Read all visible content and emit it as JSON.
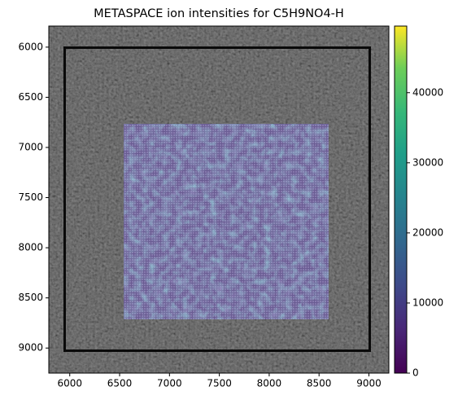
{
  "chart_data": {
    "type": "image",
    "title": "METASPACE ion intensities for C5H9NO4-H",
    "xlim": [
      5790,
      9200
    ],
    "xticks": [
      6000,
      6500,
      7000,
      7500,
      8000,
      8500,
      9000
    ],
    "ylim": [
      9250,
      5790
    ],
    "yticks": [
      6000,
      6500,
      7000,
      7500,
      8000,
      8500,
      9000
    ],
    "clim": [
      0,
      49500
    ],
    "cticks": [
      0,
      10000,
      20000,
      30000,
      40000
    ]
  }
}
